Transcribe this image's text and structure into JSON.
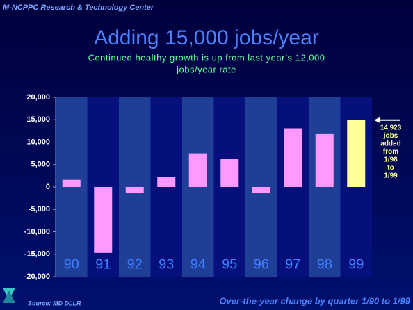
{
  "header": "M-NCPPC Research & Technology Center",
  "footer": {
    "source": "Source: MD DLLR",
    "note": "Over-the-year change by quarter 1/90 to 1/99"
  },
  "chart_data": {
    "type": "bar",
    "title": "Adding 15,000 jobs/year",
    "subtitle": [
      "Continued healthy growth is up from last year’s 12,000",
      "jobs/year rate"
    ],
    "categories": [
      "90",
      "91",
      "92",
      "93",
      "94",
      "95",
      "96",
      "97",
      "98",
      "99"
    ],
    "values": [
      1600,
      -14700,
      -1400,
      2200,
      7500,
      6200,
      -1400,
      13100,
      11800,
      14923
    ],
    "colors": [
      "#ff99ff",
      "#ff99ff",
      "#ff99ff",
      "#ff99ff",
      "#ff99ff",
      "#ff99ff",
      "#ff99ff",
      "#ff99ff",
      "#ff99ff",
      "#ffff99"
    ],
    "ylim": [
      -20000,
      20000
    ],
    "yticks": [
      {
        "value": -20000,
        "label": "-20,000"
      },
      {
        "value": -15000,
        "label": "-15,000"
      },
      {
        "value": -10000,
        "label": "-10,000"
      },
      {
        "value": -5000,
        "label": "-5,000"
      },
      0,
      {
        "value": 5000,
        "label": "5,000"
      },
      {
        "value": 10000,
        "label": "10,000"
      },
      {
        "value": 15000,
        "label": "15,000"
      },
      {
        "value": 20000,
        "label": "20,000"
      }
    ],
    "annotation": [
      "14,923",
      "jobs",
      "added",
      "from",
      "1/98",
      "to",
      "1/99"
    ],
    "grid": false
  }
}
